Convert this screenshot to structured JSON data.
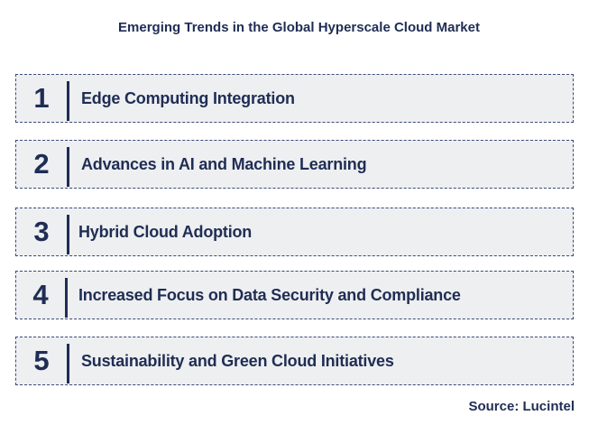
{
  "title": "Emerging Trends in the Global Hyperscale Cloud Market",
  "trends": [
    {
      "number": "1",
      "label": "Edge Computing Integration"
    },
    {
      "number": "2",
      "label": "Advances in AI and Machine Learning"
    },
    {
      "number": "3",
      "label": "Hybrid Cloud Adoption"
    },
    {
      "number": "4",
      "label": "Increased Focus on Data Security and Compliance"
    },
    {
      "number": "5",
      "label": "Sustainability and Green Cloud Initiatives"
    }
  ],
  "source": "Source: Lucintel",
  "colors": {
    "text": "#1f2d54",
    "box_fill": "#eeeff1",
    "box_border": "#3a4a7a"
  }
}
